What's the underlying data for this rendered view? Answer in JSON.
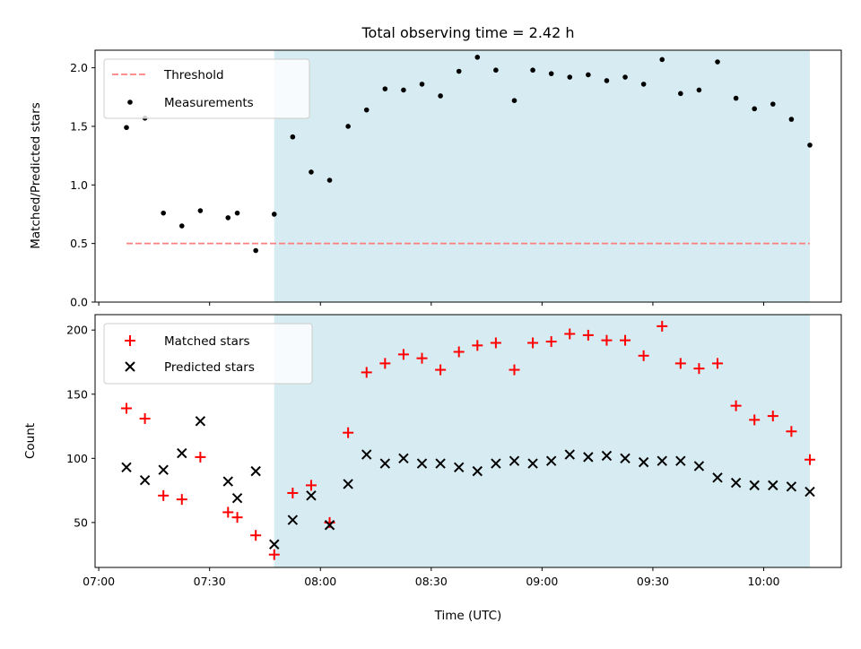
{
  "chart_data": [
    {
      "type": "scatter",
      "title": "Total observing time = 2.42 h",
      "ylabel": "Matched/Predicted stars",
      "xlabel": "",
      "ylim": [
        0,
        2.15
      ],
      "yticks": [
        "0.0",
        "0.5",
        "1.0",
        "1.5",
        "2.0"
      ],
      "grid": false,
      "legend_position": "top-left",
      "shaded_span": {
        "start": "07:47:30",
        "end": "10:12:30",
        "color": "#add8e6"
      },
      "series": [
        {
          "name": "Threshold",
          "kind": "dashed-line",
          "color": "#ff7f7f",
          "x": [
            "07:07:30",
            "10:12:30"
          ],
          "y": [
            0.5,
            0.5
          ]
        },
        {
          "name": "Measurements",
          "kind": "dots",
          "color": "#000000",
          "points": [
            [
              "07:07:30",
              1.49
            ],
            [
              "07:12:30",
              1.57
            ],
            [
              "07:17:30",
              0.76
            ],
            [
              "07:22:30",
              0.65
            ],
            [
              "07:27:30",
              0.78
            ],
            [
              "07:35:00",
              0.72
            ],
            [
              "07:37:30",
              0.76
            ],
            [
              "07:42:30",
              0.44
            ],
            [
              "07:47:30",
              0.75
            ],
            [
              "07:52:30",
              1.41
            ],
            [
              "07:57:30",
              1.11
            ],
            [
              "08:02:30",
              1.04
            ],
            [
              "08:07:30",
              1.5
            ],
            [
              "08:12:30",
              1.64
            ],
            [
              "08:17:30",
              1.82
            ],
            [
              "08:22:30",
              1.81
            ],
            [
              "08:27:30",
              1.86
            ],
            [
              "08:32:30",
              1.76
            ],
            [
              "08:37:30",
              1.97
            ],
            [
              "08:42:30",
              2.09
            ],
            [
              "08:47:30",
              1.98
            ],
            [
              "08:52:30",
              1.72
            ],
            [
              "08:57:30",
              1.98
            ],
            [
              "09:02:30",
              1.95
            ],
            [
              "09:07:30",
              1.92
            ],
            [
              "09:12:30",
              1.94
            ],
            [
              "09:17:30",
              1.89
            ],
            [
              "09:22:30",
              1.92
            ],
            [
              "09:27:30",
              1.86
            ],
            [
              "09:32:30",
              2.07
            ],
            [
              "09:37:30",
              1.78
            ],
            [
              "09:42:30",
              1.81
            ],
            [
              "09:47:30",
              2.05
            ],
            [
              "09:52:30",
              1.74
            ],
            [
              "09:57:30",
              1.65
            ],
            [
              "10:02:30",
              1.69
            ],
            [
              "10:07:30",
              1.56
            ],
            [
              "10:12:30",
              1.34
            ]
          ]
        }
      ]
    },
    {
      "type": "scatter",
      "title": "",
      "xlabel": "Time (UTC)",
      "ylabel": "Count",
      "ylim": [
        15,
        212
      ],
      "yticks": [
        "50",
        "100",
        "150",
        "200"
      ],
      "xticks": [
        "07:00",
        "07:30",
        "08:00",
        "08:30",
        "09:00",
        "09:30",
        "10:00"
      ],
      "xlim": [
        "06:59",
        "10:21"
      ],
      "grid": false,
      "legend_position": "top-left",
      "shaded_span": {
        "start": "07:47:30",
        "end": "10:12:30",
        "color": "#add8e6"
      },
      "series": [
        {
          "name": "Matched stars",
          "kind": "plus",
          "color": "#ff0000",
          "points": [
            [
              "07:07:30",
              139
            ],
            [
              "07:12:30",
              131
            ],
            [
              "07:17:30",
              71
            ],
            [
              "07:22:30",
              68
            ],
            [
              "07:27:30",
              101
            ],
            [
              "07:35:00",
              58
            ],
            [
              "07:37:30",
              54
            ],
            [
              "07:42:30",
              40
            ],
            [
              "07:47:30",
              25
            ],
            [
              "07:52:30",
              73
            ],
            [
              "07:57:30",
              79
            ],
            [
              "08:02:30",
              50
            ],
            [
              "08:07:30",
              120
            ],
            [
              "08:12:30",
              167
            ],
            [
              "08:17:30",
              174
            ],
            [
              "08:22:30",
              181
            ],
            [
              "08:27:30",
              178
            ],
            [
              "08:32:30",
              169
            ],
            [
              "08:37:30",
              183
            ],
            [
              "08:42:30",
              188
            ],
            [
              "08:47:30",
              190
            ],
            [
              "08:52:30",
              169
            ],
            [
              "08:57:30",
              190
            ],
            [
              "09:02:30",
              191
            ],
            [
              "09:07:30",
              197
            ],
            [
              "09:12:30",
              196
            ],
            [
              "09:17:30",
              192
            ],
            [
              "09:22:30",
              192
            ],
            [
              "09:27:30",
              180
            ],
            [
              "09:32:30",
              203
            ],
            [
              "09:37:30",
              174
            ],
            [
              "09:42:30",
              170
            ],
            [
              "09:47:30",
              174
            ],
            [
              "09:52:30",
              141
            ],
            [
              "09:57:30",
              130
            ],
            [
              "10:02:30",
              133
            ],
            [
              "10:07:30",
              121
            ],
            [
              "10:12:30",
              99
            ]
          ]
        },
        {
          "name": "Predicted stars",
          "kind": "x",
          "color": "#000000",
          "points": [
            [
              "07:07:30",
              93
            ],
            [
              "07:12:30",
              83
            ],
            [
              "07:17:30",
              91
            ],
            [
              "07:22:30",
              104
            ],
            [
              "07:27:30",
              129
            ],
            [
              "07:35:00",
              82
            ],
            [
              "07:37:30",
              69
            ],
            [
              "07:42:30",
              90
            ],
            [
              "07:47:30",
              33
            ],
            [
              "07:52:30",
              52
            ],
            [
              "07:57:30",
              71
            ],
            [
              "08:02:30",
              48
            ],
            [
              "08:07:30",
              80
            ],
            [
              "08:12:30",
              103
            ],
            [
              "08:17:30",
              96
            ],
            [
              "08:22:30",
              100
            ],
            [
              "08:27:30",
              96
            ],
            [
              "08:32:30",
              96
            ],
            [
              "08:37:30",
              93
            ],
            [
              "08:42:30",
              90
            ],
            [
              "08:47:30",
              96
            ],
            [
              "08:52:30",
              98
            ],
            [
              "08:57:30",
              96
            ],
            [
              "09:02:30",
              98
            ],
            [
              "09:07:30",
              103
            ],
            [
              "09:12:30",
              101
            ],
            [
              "09:17:30",
              102
            ],
            [
              "09:22:30",
              100
            ],
            [
              "09:27:30",
              97
            ],
            [
              "09:32:30",
              98
            ],
            [
              "09:37:30",
              98
            ],
            [
              "09:42:30",
              94
            ],
            [
              "09:47:30",
              85
            ],
            [
              "09:52:30",
              81
            ],
            [
              "09:57:30",
              79
            ],
            [
              "10:02:30",
              79
            ],
            [
              "10:07:30",
              78
            ],
            [
              "10:12:30",
              74
            ]
          ]
        }
      ]
    }
  ]
}
